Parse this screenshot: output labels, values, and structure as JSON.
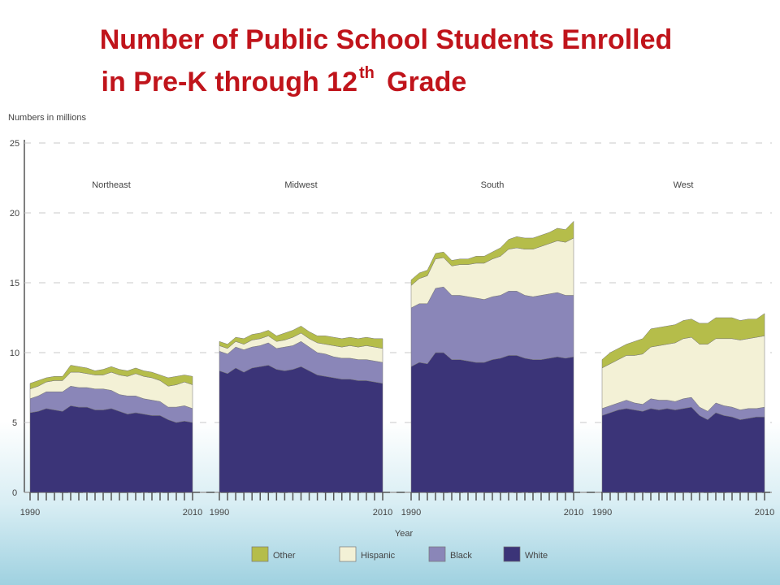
{
  "chart_data": {
    "type": "stacked-area",
    "title": {
      "line1": "Number of Public School Students Enrolled",
      "line2": "in Pre-K through 12",
      "sup": "th",
      "end": "Grade"
    },
    "ylabel": "Numbers in millions",
    "xlabel": "Year",
    "ylim": [
      0,
      25
    ],
    "yticks": [
      0,
      5,
      10,
      15,
      20,
      25
    ],
    "grid": true,
    "legend": "bottom",
    "x": [
      1990,
      1991,
      1992,
      1993,
      1994,
      1995,
      1996,
      1997,
      1998,
      1999,
      2000,
      2001,
      2002,
      2003,
      2004,
      2005,
      2006,
      2007,
      2008,
      2009,
      2010
    ],
    "xlim": [
      1990,
      2010
    ],
    "xticks": [
      1990,
      2010
    ],
    "series": [
      {
        "name": "Other",
        "color": "#b5bd4a"
      },
      {
        "name": "Hispanic",
        "color": "#f3f1d6"
      },
      {
        "name": "Black",
        "color": "#8a86b8"
      },
      {
        "name": "White",
        "color": "#3b3478"
      }
    ],
    "panels": [
      {
        "name": "Northeast",
        "values": [
          [
            0.4,
            0.4,
            0.3,
            0.3,
            0.3,
            0.5,
            0.4,
            0.4,
            0.3,
            0.4,
            0.4,
            0.4,
            0.4,
            0.4,
            0.4,
            0.4,
            0.4,
            0.6,
            0.6,
            0.5,
            0.6
          ],
          [
            0.7,
            0.7,
            0.7,
            0.8,
            0.8,
            1.0,
            1.1,
            1.0,
            1.0,
            1.0,
            1.3,
            1.4,
            1.4,
            1.6,
            1.6,
            1.6,
            1.5,
            1.5,
            1.6,
            1.7,
            1.7
          ],
          [
            1.0,
            1.1,
            1.2,
            1.3,
            1.4,
            1.4,
            1.4,
            1.4,
            1.5,
            1.5,
            1.3,
            1.2,
            1.3,
            1.2,
            1.1,
            1.1,
            1.0,
            0.9,
            1.1,
            1.1,
            1.0
          ],
          [
            5.7,
            5.8,
            6.0,
            5.9,
            5.8,
            6.2,
            6.1,
            6.1,
            5.9,
            5.9,
            6.0,
            5.8,
            5.6,
            5.7,
            5.6,
            5.5,
            5.5,
            5.2,
            5.0,
            5.1,
            5.0
          ]
        ]
      },
      {
        "name": "Midwest",
        "values": [
          [
            0.3,
            0.3,
            0.3,
            0.4,
            0.4,
            0.4,
            0.4,
            0.4,
            0.5,
            0.5,
            0.5,
            0.5,
            0.5,
            0.6,
            0.6,
            0.6,
            0.6,
            0.6,
            0.6,
            0.6,
            0.7
          ],
          [
            0.4,
            0.4,
            0.4,
            0.4,
            0.5,
            0.5,
            0.5,
            0.5,
            0.5,
            0.6,
            0.6,
            0.6,
            0.7,
            0.7,
            0.8,
            0.8,
            0.9,
            0.9,
            1.0,
            1.0,
            1.0
          ],
          [
            1.4,
            1.4,
            1.5,
            1.6,
            1.5,
            1.5,
            1.6,
            1.5,
            1.7,
            1.7,
            1.8,
            1.7,
            1.6,
            1.6,
            1.5,
            1.5,
            1.5,
            1.5,
            1.5,
            1.5,
            1.5
          ],
          [
            8.7,
            8.5,
            8.9,
            8.6,
            8.9,
            9.0,
            9.1,
            8.8,
            8.7,
            8.8,
            9.0,
            8.7,
            8.4,
            8.3,
            8.2,
            8.1,
            8.1,
            8.0,
            8.0,
            7.9,
            7.8
          ]
        ]
      },
      {
        "name": "South",
        "values": [
          [
            0.4,
            0.4,
            0.4,
            0.4,
            0.4,
            0.4,
            0.4,
            0.4,
            0.5,
            0.5,
            0.5,
            0.6,
            0.7,
            0.8,
            0.8,
            0.8,
            0.8,
            0.8,
            0.9,
            0.9,
            1.2
          ],
          [
            1.6,
            1.8,
            2.0,
            2.1,
            2.1,
            2.1,
            2.2,
            2.3,
            2.5,
            2.6,
            2.7,
            2.8,
            3.0,
            3.1,
            3.3,
            3.4,
            3.5,
            3.6,
            3.7,
            3.8,
            4.1
          ],
          [
            4.2,
            4.2,
            4.3,
            4.6,
            4.7,
            4.6,
            4.6,
            4.6,
            4.6,
            4.5,
            4.5,
            4.5,
            4.6,
            4.6,
            4.5,
            4.5,
            4.6,
            4.6,
            4.6,
            4.5,
            4.4
          ],
          [
            9.0,
            9.3,
            9.2,
            10.0,
            10.0,
            9.5,
            9.5,
            9.4,
            9.3,
            9.3,
            9.5,
            9.6,
            9.8,
            9.8,
            9.6,
            9.5,
            9.5,
            9.6,
            9.7,
            9.6,
            9.7
          ]
        ]
      },
      {
        "name": "West",
        "values": [
          [
            0.6,
            0.8,
            0.8,
            0.8,
            1.0,
            1.1,
            1.3,
            1.3,
            1.3,
            1.3,
            1.3,
            1.3,
            1.5,
            1.5,
            1.5,
            1.5,
            1.5,
            1.4,
            1.4,
            1.3,
            1.6
          ],
          [
            2.9,
            3.0,
            3.1,
            3.2,
            3.4,
            3.6,
            3.7,
            3.9,
            4.0,
            4.2,
            4.3,
            4.3,
            4.5,
            4.8,
            4.6,
            4.8,
            4.9,
            5.0,
            5.0,
            5.1,
            5.1
          ],
          [
            0.5,
            0.5,
            0.5,
            0.6,
            0.5,
            0.5,
            0.7,
            0.7,
            0.6,
            0.6,
            0.7,
            0.7,
            0.6,
            0.6,
            0.7,
            0.7,
            0.7,
            0.7,
            0.7,
            0.6,
            0.7
          ],
          [
            5.5,
            5.7,
            5.9,
            6.0,
            5.9,
            5.8,
            6.0,
            5.9,
            6.0,
            5.9,
            6.0,
            6.1,
            5.5,
            5.2,
            5.7,
            5.5,
            5.4,
            5.2,
            5.3,
            5.4,
            5.4
          ]
        ]
      }
    ]
  }
}
